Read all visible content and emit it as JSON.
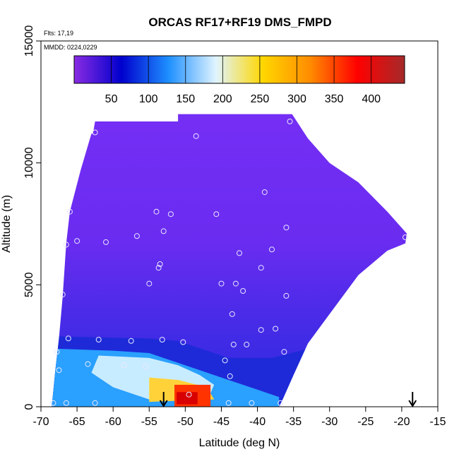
{
  "chart_data": {
    "type": "heatmap",
    "title": "ORCAS RF17+RF19 DMS_FMPD",
    "annotations": [
      "Flts: 17,19",
      "MMDD: 0224,0229"
    ],
    "xlabel": "Latitude (deg N)",
    "ylabel": "Altitude (m)",
    "xlim": [
      -70,
      -15
    ],
    "ylim": [
      0,
      15000
    ],
    "x_ticks": [
      "-70",
      "-65",
      "-60",
      "-55",
      "-50",
      "-45",
      "-40",
      "-35",
      "-30",
      "-25",
      "-20",
      "-15"
    ],
    "y_ticks": [
      "0",
      "5000",
      "10000",
      "15000"
    ],
    "colorbar": {
      "range": [
        0,
        445
      ],
      "ticks": [
        "50",
        "100",
        "150",
        "200",
        "250",
        "300",
        "350",
        "400"
      ],
      "colors": [
        "#8a2be2",
        "#0000cd",
        "#1e90ff",
        "#e0f4ff",
        "#ffd700",
        "#ff8c00",
        "#ff0000",
        "#a52a2a"
      ]
    },
    "colors": {
      "background_field": "#7b2ff7",
      "low_layer": "#1e2ad8",
      "boundary_layer": "#2aa0ff",
      "max": "#d80000"
    },
    "arrows_x": [
      -53,
      -18.5
    ],
    "sample_points": [
      [
        -62.5,
        11250
      ],
      [
        -48.5,
        11100
      ],
      [
        -35.5,
        11700
      ],
      [
        -66,
        8000
      ],
      [
        -54,
        8000
      ],
      [
        -52,
        7900
      ],
      [
        -45.7,
        7900
      ],
      [
        -39,
        8800
      ],
      [
        -36,
        7350
      ],
      [
        -53,
        7200
      ],
      [
        -56.7,
        7000
      ],
      [
        -65,
        6800
      ],
      [
        -61,
        6750
      ],
      [
        -66.5,
        6650
      ],
      [
        -38,
        6450
      ],
      [
        -42.5,
        6300
      ],
      [
        -53.5,
        5850
      ],
      [
        -53.7,
        5700
      ],
      [
        -39.5,
        5700
      ],
      [
        -55,
        5050
      ],
      [
        -45,
        5050
      ],
      [
        -43,
        5050
      ],
      [
        -42,
        4750
      ],
      [
        -67,
        4600
      ],
      [
        -36,
        4550
      ],
      [
        -43.5,
        3800
      ],
      [
        -39.5,
        3150
      ],
      [
        -37.5,
        3200
      ],
      [
        -66.2,
        2800
      ],
      [
        -62,
        2750
      ],
      [
        -57.5,
        2700
      ],
      [
        -53.2,
        2750
      ],
      [
        -50.3,
        2650
      ],
      [
        -43.3,
        2550
      ],
      [
        -41.5,
        2550
      ],
      [
        -36.3,
        2250
      ],
      [
        -67.8,
        2250
      ],
      [
        -44.5,
        1900
      ],
      [
        -63.5,
        1750
      ],
      [
        -58.5,
        1700
      ],
      [
        -55.5,
        1650
      ],
      [
        -43.8,
        1250
      ],
      [
        -67.5,
        1500
      ],
      [
        -49.5,
        500
      ],
      [
        -68.3,
        150
      ],
      [
        -66.5,
        150
      ],
      [
        -62.5,
        150
      ],
      [
        -44,
        150
      ],
      [
        -40.8,
        150
      ],
      [
        -36.8,
        150
      ],
      [
        -19.5,
        6950
      ]
    ]
  }
}
